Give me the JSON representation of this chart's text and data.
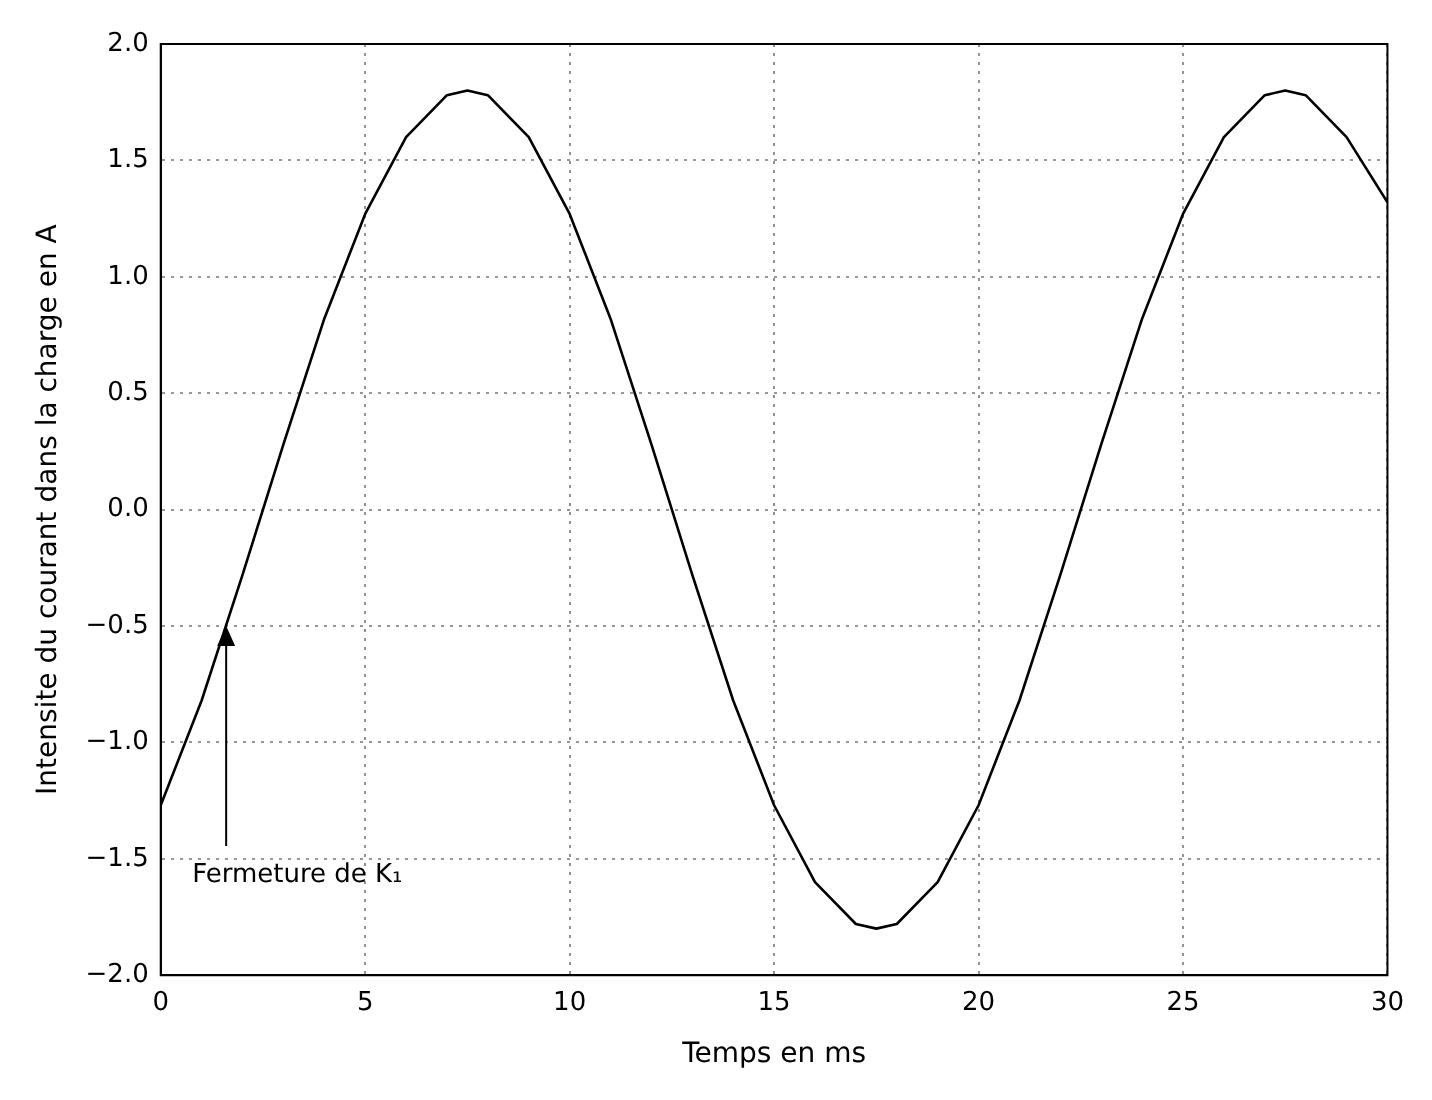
{
  "chart_data": {
    "type": "line",
    "xlabel": "Temps en ms",
    "ylabel": "Intensite du courant dans la charge en A",
    "series": [
      {
        "color": "#000000",
        "x": [
          0,
          1,
          2,
          3,
          4,
          5,
          6,
          7,
          7.5,
          8,
          9,
          10,
          11,
          12,
          13,
          14,
          15,
          16,
          17,
          17.5,
          18,
          19,
          20,
          21,
          22,
          23,
          24,
          25,
          26,
          27,
          27.5,
          28,
          29,
          30
        ],
        "values": [
          -1.27,
          -0.82,
          -0.28,
          0.28,
          0.82,
          1.27,
          1.6,
          1.78,
          1.8,
          1.78,
          1.6,
          1.27,
          0.82,
          0.28,
          -0.28,
          -0.82,
          -1.27,
          -1.6,
          -1.78,
          -1.8,
          -1.78,
          -1.6,
          -1.27,
          -0.82,
          -0.28,
          0.28,
          0.82,
          1.27,
          1.6,
          1.78,
          1.8,
          1.78,
          1.6,
          1.32
        ]
      }
    ],
    "xlim": [
      0,
      30
    ],
    "xticks": [
      0,
      5,
      10,
      15,
      20,
      25,
      30
    ],
    "ylim": [
      -2,
      2
    ],
    "yticks": [
      {
        "value": -2,
        "label": "−2.0"
      },
      {
        "value": -1.5,
        "label": "−1.5"
      },
      {
        "value": -1,
        "label": "−1.0"
      },
      {
        "value": -0.5,
        "label": "−0.5"
      },
      {
        "value": 0,
        "label": "0.0"
      },
      {
        "value": 0.5,
        "label": "0.5"
      },
      {
        "value": 1,
        "label": "1.0"
      },
      {
        "value": 1.5,
        "label": "1.5"
      },
      {
        "value": 2,
        "label": "2.0"
      }
    ],
    "grid": true,
    "line_style": "solid",
    "marker": "none",
    "annotations": [
      {
        "text": "Fermeture de K₁",
        "x": 1.6,
        "y": -0.5
      }
    ]
  }
}
